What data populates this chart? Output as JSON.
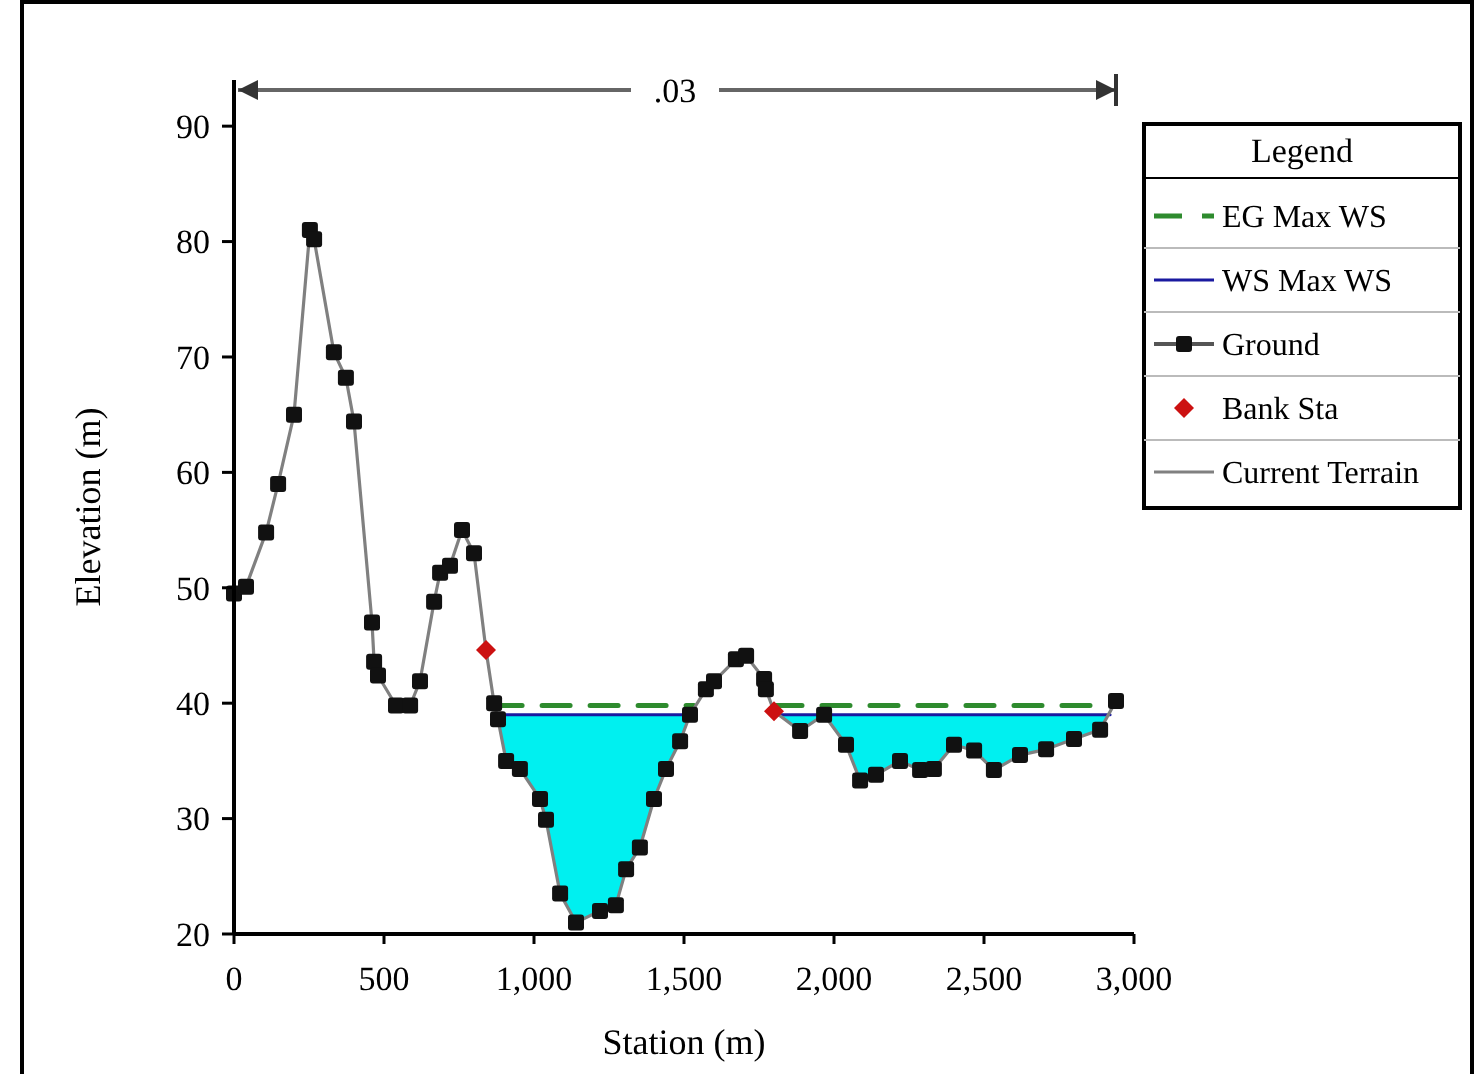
{
  "chart_data": {
    "type": "line",
    "xlabel": "Station (m)",
    "ylabel": "Elevation (m)",
    "legend_title": "Legend",
    "legend": "right",
    "grid": false,
    "xlim": [
      0,
      3000
    ],
    "xticks": [
      0,
      {
        "value": 500,
        "label": "500"
      },
      {
        "value": 1000,
        "label": "1,000"
      },
      {
        "value": 1500,
        "label": "1,500"
      },
      {
        "value": 2000,
        "label": "2,000"
      },
      {
        "value": 2500,
        "label": "2,500"
      },
      {
        "value": 3000,
        "label": "3,000"
      }
    ],
    "ylim": [
      20,
      94
    ],
    "yticks": [
      20,
      30,
      40,
      50,
      60,
      70,
      80,
      90
    ],
    "annotations": [
      ".03"
    ],
    "series": [
      {
        "name": "EG Max WS",
        "line_style": "dashed",
        "color": "#2e8b2e",
        "x": [
          867,
          1533,
          1550,
          1800,
          2920
        ],
        "values": [
          39.8,
          39.8,
          null,
          39.8,
          39.8
        ]
      },
      {
        "name": "WS Max WS",
        "type": "area",
        "line_style": "solid",
        "color": "#1a1aa0",
        "x": [
          867,
          1533,
          1550,
          1800,
          2920
        ],
        "values": [
          39,
          39,
          null,
          39,
          39
        ]
      },
      {
        "name": "Ground",
        "type": "scatter",
        "marker": "square",
        "color": "#111111",
        "x": [
          0,
          40,
          107,
          147,
          200,
          253,
          267,
          333,
          373,
          400,
          460,
          467,
          480,
          540,
          587,
          620,
          667,
          687,
          720,
          760,
          800,
          867,
          880,
          907,
          953,
          1020,
          1040,
          1087,
          1140,
          1220,
          1273,
          1307,
          1353,
          1400,
          1440,
          1487,
          1520,
          1573,
          1600,
          1673,
          1707,
          1767,
          1773,
          1887,
          1967,
          2040,
          2087,
          2140,
          2220,
          2287,
          2333,
          2400,
          2467,
          2533,
          2620,
          2707,
          2800,
          2887,
          2940
        ],
        "values": [
          49.5,
          50.1,
          54.8,
          59,
          65,
          81,
          80.2,
          70.4,
          68.2,
          64.4,
          47,
          43.6,
          42.4,
          39.8,
          39.8,
          41.9,
          48.8,
          51.3,
          51.9,
          55,
          53,
          40,
          38.6,
          35,
          34.3,
          31.7,
          29.9,
          23.5,
          21,
          22,
          22.5,
          25.6,
          27.5,
          31.7,
          34.3,
          36.7,
          39,
          41.2,
          41.9,
          43.8,
          44.1,
          42.1,
          41.2,
          37.6,
          39,
          36.4,
          33.3,
          33.8,
          35,
          34.2,
          34.3,
          36.4,
          35.9,
          34.2,
          35.5,
          36,
          36.9,
          37.7,
          40.2
        ]
      },
      {
        "name": "Bank Sta",
        "type": "scatter",
        "marker": "diamond",
        "color": "#cc1111",
        "x": [
          840,
          1800
        ],
        "values": [
          44.6,
          39.3
        ]
      },
      {
        "name": "Current Terrain",
        "line_style": "solid",
        "color": "#808080",
        "x": [
          0,
          40,
          107,
          147,
          200,
          253,
          267,
          333,
          373,
          400,
          460,
          467,
          480,
          540,
          587,
          620,
          667,
          687,
          720,
          760,
          800,
          840,
          867,
          880,
          907,
          953,
          1020,
          1040,
          1087,
          1140,
          1220,
          1273,
          1307,
          1353,
          1400,
          1440,
          1487,
          1520,
          1573,
          1600,
          1673,
          1707,
          1767,
          1773,
          1800,
          1887,
          1967,
          2040,
          2087,
          2140,
          2220,
          2287,
          2333,
          2400,
          2467,
          2533,
          2620,
          2707,
          2800,
          2887,
          2940
        ],
        "values": [
          49.5,
          50.1,
          54.8,
          59,
          65,
          81,
          80.2,
          70.4,
          68.2,
          64.4,
          47,
          43.6,
          42.4,
          39.8,
          39.8,
          41.9,
          48.8,
          51.3,
          51.9,
          55,
          53,
          44.6,
          40,
          38.6,
          35,
          34.3,
          31.7,
          29.9,
          23.5,
          21,
          22,
          22.5,
          25.6,
          27.5,
          31.7,
          34.3,
          36.7,
          39,
          41.2,
          41.9,
          43.8,
          44.1,
          42.1,
          41.2,
          39.3,
          37.6,
          39,
          36.4,
          33.3,
          33.8,
          35,
          34.2,
          34.3,
          36.4,
          35.9,
          34.2,
          35.5,
          36,
          36.9,
          37.7,
          40.2
        ]
      }
    ]
  }
}
